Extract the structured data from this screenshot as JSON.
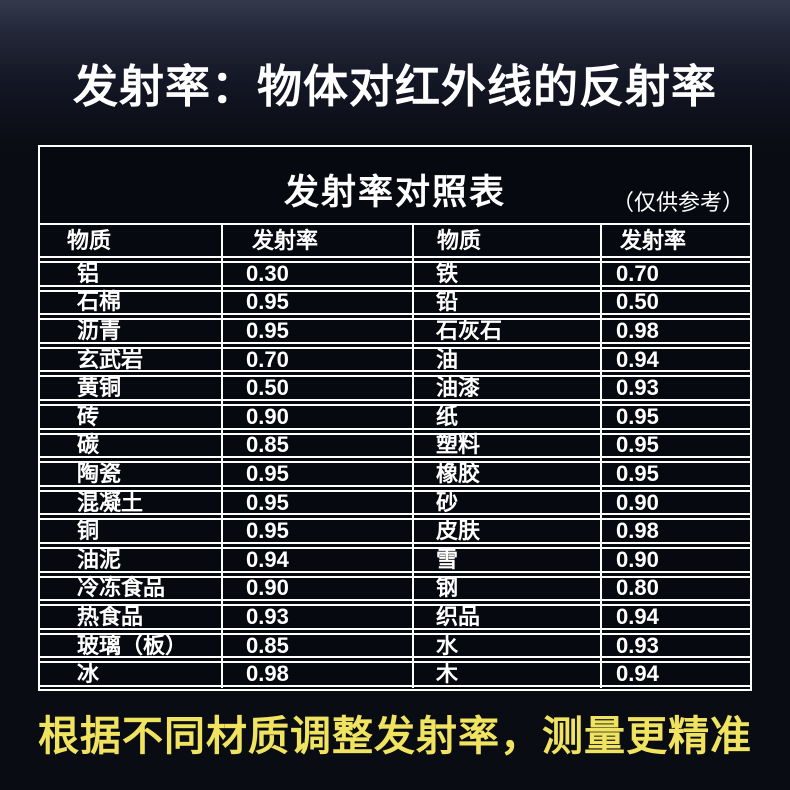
{
  "page": {
    "heading": "发射率：物体对红外线的反射率",
    "footer_note": "根据不同材质调整发射率，测量更精准",
    "colors": {
      "background": "#0a0c13",
      "table_border": "#ffffff",
      "heading_text": "#ffffff",
      "footer_accent": "#f0e360"
    }
  },
  "table": {
    "title": "发射率对照表",
    "note": "（仅供参考）",
    "headers": [
      "物质",
      "发射率",
      "物质",
      "发射率"
    ],
    "rows": [
      {
        "m1": "铝",
        "e1": "0.30",
        "m2": "铁",
        "e2": "0.70"
      },
      {
        "m1": "石棉",
        "e1": "0.95",
        "m2": "铅",
        "e2": "0.50"
      },
      {
        "m1": "沥青",
        "e1": "0.95",
        "m2": "石灰石",
        "e2": "0.98"
      },
      {
        "m1": "玄武岩",
        "e1": "0.70",
        "m2": "油",
        "e2": "0.94"
      },
      {
        "m1": "黄铜",
        "e1": "0.50",
        "m2": "油漆",
        "e2": "0.93"
      },
      {
        "m1": "砖",
        "e1": "0.90",
        "m2": "纸",
        "e2": "0.95"
      },
      {
        "m1": "碳",
        "e1": "0.85",
        "m2": "塑料",
        "e2": "0.95"
      },
      {
        "m1": "陶瓷",
        "e1": "0.95",
        "m2": "橡胶",
        "e2": "0.95"
      },
      {
        "m1": "混凝土",
        "e1": "0.95",
        "m2": "砂",
        "e2": "0.90"
      },
      {
        "m1": "铜",
        "e1": "0.95",
        "m2": "皮肤",
        "e2": "0.98"
      },
      {
        "m1": "油泥",
        "e1": "0.94",
        "m2": "雪",
        "e2": "0.90"
      },
      {
        "m1": "冷冻食品",
        "e1": "0.90",
        "m2": "钢",
        "e2": "0.80"
      },
      {
        "m1": "热食品",
        "e1": "0.93",
        "m2": "织品",
        "e2": "0.94"
      },
      {
        "m1": "玻璃（板）",
        "e1": "0.85",
        "m2": "水",
        "e2": "0.93"
      },
      {
        "m1": "冰",
        "e1": "0.98",
        "m2": "木",
        "e2": "0.94"
      }
    ]
  }
}
